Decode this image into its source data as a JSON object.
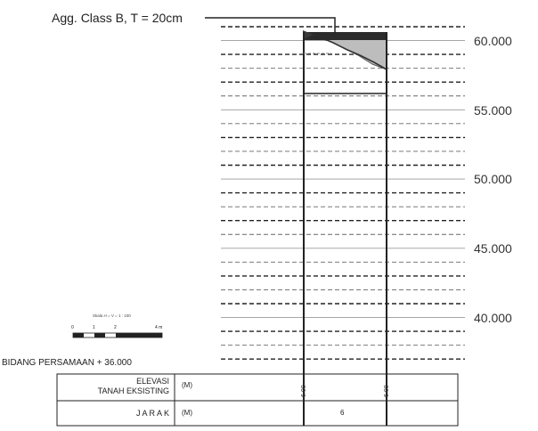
{
  "callout_text": "Agg. Class B, T = 20cm",
  "elevation_labels": [
    "60.000",
    "55.000",
    "50.000",
    "45.000",
    "40.000"
  ],
  "datum_text": "BIDANG PERSAMAAN + 36.000",
  "scale_bar": {
    "title": "Skala H = V = 1 : 100",
    "ticks": [
      "0",
      "1",
      "2",
      "4 m"
    ]
  },
  "table": {
    "row1_label_line1": "ELEVASI",
    "row1_label_line2": "TANAH EKSISTING",
    "row1_unit": "(M)",
    "row1_values": [
      "6.00",
      "6.00"
    ],
    "row2_label": "J A R A K",
    "row2_unit": "(M)",
    "row2_value": "6"
  }
}
